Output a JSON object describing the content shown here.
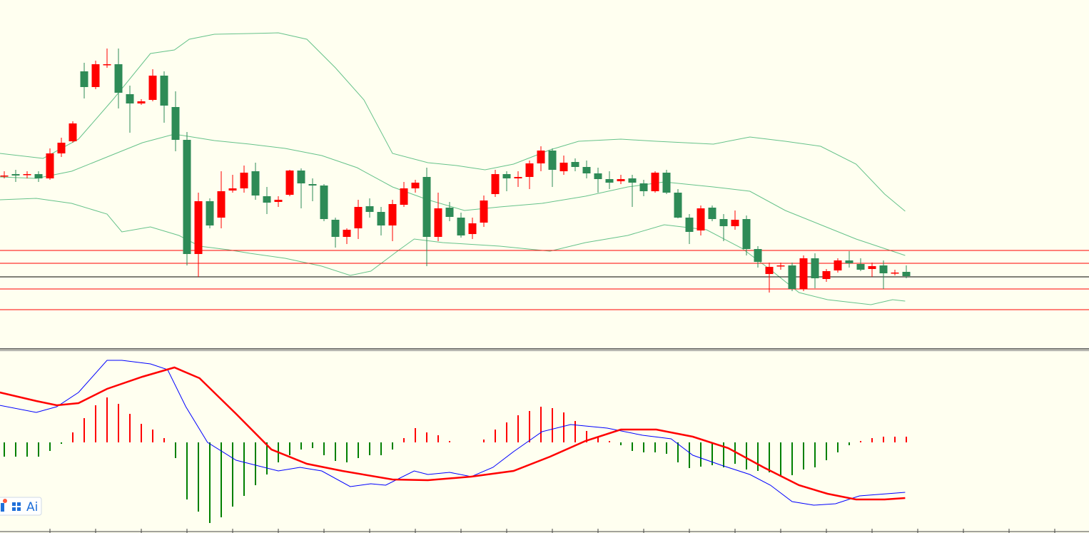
{
  "chart_data": [
    {
      "type": "candlestick",
      "background": "#fffff0",
      "up_color": "#ff0000",
      "down_color": "#2e8b57",
      "xlim": [
        -0.375,
        95
      ],
      "ylim": [
        12,
        500
      ],
      "ohlc": [
        [
          253,
          260,
          250,
          254
        ],
        [
          256,
          262,
          245,
          254
        ],
        [
          255,
          260,
          250,
          256
        ],
        [
          256,
          260,
          245,
          250
        ],
        [
          250,
          292,
          248,
          285
        ],
        [
          285,
          307,
          280,
          300
        ],
        [
          302,
          330,
          300,
          327
        ],
        [
          400,
          412,
          362,
          378
        ],
        [
          378,
          415,
          375,
          410
        ],
        [
          409,
          432,
          405,
          410
        ],
        [
          410,
          432,
          348,
          370
        ],
        [
          368,
          380,
          314,
          355
        ],
        [
          355,
          361,
          353,
          358
        ],
        [
          360,
          403,
          358,
          394
        ],
        [
          394,
          400,
          328,
          352
        ],
        [
          350,
          372,
          288,
          304
        ],
        [
          304,
          315,
          128,
          144
        ],
        [
          144,
          230,
          112,
          218
        ],
        [
          218,
          222,
          180,
          184
        ],
        [
          195,
          260,
          180,
          232
        ],
        [
          233,
          255,
          230,
          236
        ],
        [
          236,
          268,
          230,
          258
        ],
        [
          260,
          272,
          220,
          226
        ],
        [
          225,
          238,
          200,
          216
        ],
        [
          217,
          225,
          210,
          220
        ],
        [
          227,
          262,
          225,
          261
        ],
        [
          261,
          264,
          208,
          243
        ],
        [
          242,
          250,
          218,
          240
        ],
        [
          240,
          242,
          190,
          193
        ],
        [
          192,
          195,
          153,
          168
        ],
        [
          168,
          180,
          158,
          178
        ],
        [
          180,
          220,
          165,
          210
        ],
        [
          211,
          222,
          195,
          203
        ],
        [
          203,
          210,
          170,
          184
        ],
        [
          184,
          220,
          162,
          214
        ],
        [
          213,
          245,
          210,
          236
        ],
        [
          236,
          248,
          230,
          244
        ],
        [
          252,
          265,
          127,
          168
        ],
        [
          168,
          230,
          162,
          208
        ],
        [
          209,
          217,
          190,
          196
        ],
        [
          195,
          202,
          167,
          170
        ],
        [
          172,
          195,
          165,
          187
        ],
        [
          188,
          226,
          182,
          219
        ],
        [
          228,
          262,
          224,
          256
        ],
        [
          256,
          260,
          232,
          250
        ],
        [
          250,
          260,
          238,
          252
        ],
        [
          252,
          275,
          235,
          271
        ],
        [
          271,
          295,
          260,
          289
        ],
        [
          289,
          292,
          238,
          262
        ],
        [
          260,
          282,
          255,
          272
        ],
        [
          273,
          278,
          260,
          266
        ],
        [
          266,
          275,
          250,
          257
        ],
        [
          257,
          265,
          230,
          249
        ],
        [
          249,
          260,
          235,
          244
        ],
        [
          246,
          255,
          242,
          249
        ],
        [
          250,
          255,
          210,
          244
        ],
        [
          243,
          248,
          225,
          232
        ],
        [
          232,
          260,
          230,
          258
        ],
        [
          258,
          262,
          228,
          230
        ],
        [
          230,
          235,
          194,
          195
        ],
        [
          195,
          200,
          158,
          175
        ],
        [
          177,
          212,
          170,
          208
        ],
        [
          209,
          212,
          190,
          193
        ],
        [
          193,
          200,
          162,
          183
        ],
        [
          183,
          205,
          178,
          192
        ],
        [
          193,
          198,
          142,
          151
        ],
        [
          151,
          155,
          125,
          133
        ],
        [
          116,
          132,
          90,
          126
        ],
        [
          127,
          132,
          122,
          128
        ],
        [
          128,
          132,
          92,
          95
        ],
        [
          95,
          142,
          92,
          138
        ],
        [
          138,
          145,
          96,
          110
        ],
        [
          109,
          123,
          105,
          120
        ],
        [
          121,
          138,
          118,
          135
        ],
        [
          135,
          148,
          125,
          131
        ],
        [
          130,
          138,
          120,
          122
        ],
        [
          123,
          132,
          112,
          127
        ],
        [
          128,
          135,
          95,
          117
        ],
        [
          117,
          122,
          114,
          118
        ],
        [
          119,
          128,
          110,
          113
        ]
      ],
      "lines": [
        {
          "color": "#66c28a",
          "x": [
            -0.4,
            3.4,
            6.5,
            9.6,
            12.8,
            14.9,
            16.2,
            18.4,
            21.5,
            24,
            26.5,
            29,
            31.5,
            34,
            37.1,
            39.6,
            42.1,
            44.6,
            47.8,
            50.3,
            54,
            57.1,
            59.6,
            62.1,
            65.3,
            68.4,
            71.5,
            74.6,
            77.1,
            78.9
          ],
          "values": [
            285,
            278,
            305,
            362,
            425,
            430,
            445,
            452,
            453,
            454,
            445,
            405,
            360,
            285,
            272,
            268,
            262,
            270,
            290,
            302,
            305,
            302,
            300,
            298,
            308,
            302,
            295,
            270,
            228,
            204
          ]
        },
        {
          "color": "#66c28a",
          "x": [
            -0.4,
            2.8,
            5.9,
            9,
            12.1,
            14.9,
            18.4,
            21.5,
            24.6,
            27.8,
            30.9,
            34,
            37.1,
            40.3,
            43.4,
            47.1,
            50.9,
            54.6,
            57.8,
            62.1,
            65.3,
            68.4,
            71.5,
            74.6,
            78.9
          ],
          "values": [
            252,
            250,
            260,
            280,
            300,
            312,
            303,
            298,
            292,
            282,
            265,
            238,
            220,
            205,
            210,
            215,
            225,
            238,
            245,
            238,
            232,
            205,
            185,
            165,
            142
          ]
        },
        {
          "color": "#66c28a",
          "x": [
            -0.4,
            2.8,
            5.9,
            9,
            10.3,
            12.8,
            15.3,
            17.1,
            19.6,
            21.5,
            24.6,
            27.8,
            30.3,
            32.1,
            34.6,
            35.9,
            38.4,
            43.4,
            47.8,
            50.9,
            54.6,
            57.8,
            61.5,
            64.6,
            67.1,
            69.6,
            72.1,
            75.9,
            77.8,
            78.9
          ],
          "values": [
            220,
            222,
            215,
            200,
            175,
            182,
            170,
            155,
            150,
            145,
            138,
            127,
            114,
            120,
            150,
            165,
            160,
            155,
            148,
            160,
            170,
            185,
            178,
            152,
            122,
            90,
            80,
            73,
            80,
            78
          ]
        }
      ],
      "levels": [
        {
          "value": 149,
          "color": "#ff0000"
        },
        {
          "value": 131,
          "color": "#ff0000"
        },
        {
          "value": 112,
          "color": "#000000"
        },
        {
          "value": 95,
          "color": "#ff0000"
        },
        {
          "value": 66,
          "color": "#ff0000"
        }
      ]
    },
    {
      "type": "macd",
      "xlim": [
        -0.375,
        95
      ],
      "ylim": [
        -125,
        128
      ],
      "up_color": "#ff0000",
      "down_color": "#008000",
      "histogram": [
        -20,
        -20,
        -20,
        -20,
        -12,
        -2,
        14,
        34,
        52,
        63,
        54,
        40,
        26,
        18,
        6,
        -22,
        -80,
        -97,
        -113,
        -105,
        -90,
        -75,
        -60,
        -45,
        -28,
        -18,
        -10,
        -8,
        -18,
        -26,
        -28,
        -22,
        -18,
        -18,
        -10,
        6,
        20,
        14,
        10,
        2,
        0,
        0,
        4,
        18,
        28,
        38,
        44,
        50,
        48,
        42,
        30,
        16,
        8,
        2,
        -4,
        -12,
        -14,
        -14,
        -16,
        -28,
        -36,
        -34,
        -32,
        -35,
        -30,
        -38,
        -40,
        -42,
        -48,
        -46,
        -38,
        -35,
        -25,
        -14,
        -4,
        2,
        6,
        8,
        8,
        8
      ],
      "lines": [
        {
          "color": "#0000ff",
          "width": 1,
          "x": [
            -0.4,
            2.8,
            4.6,
            6.5,
            9,
            10.3,
            12.8,
            14.3,
            15.9,
            17.8,
            20.3,
            24,
            25.9,
            27.8,
            30.3,
            32.1,
            33.4,
            35.9,
            37.1,
            39,
            40.9,
            42.8,
            44.6,
            47.1,
            49.6,
            52.8,
            55.9,
            58.4,
            60.3,
            62.8,
            65.3,
            67.1,
            69,
            70.9,
            72.8,
            74.9,
            78.9
          ],
          "values": [
            52,
            42,
            50,
            70,
            115,
            115,
            110,
            102,
            50,
            0,
            -25,
            -40,
            -35,
            -40,
            -62,
            -58,
            -60,
            -40,
            -45,
            -42,
            -48,
            -35,
            -13,
            15,
            25,
            20,
            10,
            5,
            -18,
            -32,
            -45,
            -60,
            -83,
            -88,
            -86,
            -75,
            -70
          ]
        },
        {
          "color": "#ff0000",
          "width": 2.5,
          "x": [
            -0.4,
            2.8,
            4.6,
            6.5,
            9,
            12.1,
            14.9,
            17.1,
            20.3,
            23.4,
            26.5,
            29.6,
            34,
            37.1,
            40.9,
            44.6,
            47.8,
            50.9,
            54,
            57.1,
            60.3,
            63.4,
            66.5,
            69.6,
            72.1,
            74.6,
            77.1,
            78.9
          ],
          "values": [
            70,
            58,
            52,
            55,
            75,
            92,
            105,
            90,
            40,
            -10,
            -30,
            -40,
            -52,
            -53,
            -48,
            -40,
            -20,
            2,
            18,
            18,
            8,
            -8,
            -35,
            -60,
            -72,
            -80,
            -80,
            -78
          ]
        }
      ]
    }
  ],
  "ai_button": "Ai"
}
